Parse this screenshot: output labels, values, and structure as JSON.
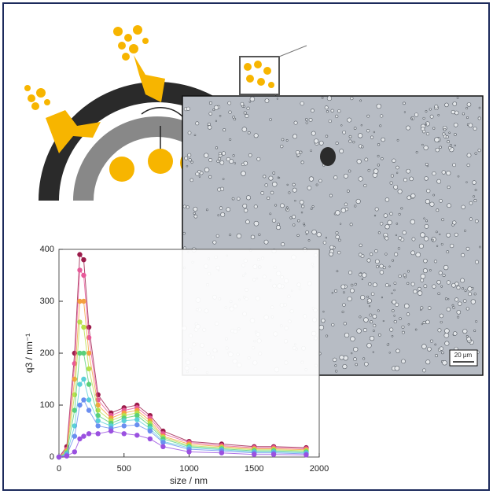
{
  "chart_data": {
    "type": "line",
    "x_label": "size / nm",
    "y_label": "q3 / nm⁻¹",
    "scale_bar": "20 µm",
    "x": [
      0,
      60,
      120,
      160,
      190,
      230,
      300,
      400,
      500,
      600,
      700,
      800,
      1000,
      1250,
      1500,
      1650,
      1900
    ],
    "series": [
      {
        "color": "#9b1b4a",
        "values": [
          0,
          20,
          200,
          390,
          380,
          250,
          120,
          85,
          95,
          100,
          80,
          50,
          30,
          25,
          20,
          20,
          18
        ]
      },
      {
        "color": "#e85a9a",
        "values": [
          0,
          15,
          180,
          360,
          350,
          230,
          110,
          80,
          90,
          95,
          75,
          45,
          28,
          22,
          18,
          18,
          16
        ]
      },
      {
        "color": "#f5a040",
        "values": [
          0,
          12,
          150,
          300,
          300,
          200,
          100,
          75,
          85,
          90,
          70,
          40,
          25,
          20,
          16,
          16,
          14
        ]
      },
      {
        "color": "#b8e04a",
        "values": [
          0,
          10,
          120,
          260,
          250,
          170,
          90,
          70,
          80,
          85,
          65,
          38,
          22,
          18,
          14,
          14,
          12
        ]
      },
      {
        "color": "#5ad07a",
        "values": [
          0,
          8,
          90,
          200,
          200,
          140,
          80,
          65,
          75,
          80,
          60,
          35,
          20,
          16,
          12,
          12,
          10
        ]
      },
      {
        "color": "#5ad0d8",
        "values": [
          0,
          6,
          60,
          140,
          150,
          110,
          70,
          60,
          70,
          72,
          55,
          30,
          18,
          14,
          10,
          10,
          8
        ]
      },
      {
        "color": "#6a8ef0",
        "values": [
          0,
          4,
          40,
          100,
          110,
          90,
          60,
          55,
          60,
          62,
          50,
          28,
          15,
          12,
          8,
          8,
          6
        ]
      },
      {
        "color": "#9a50e0",
        "values": [
          0,
          2,
          10,
          35,
          40,
          45,
          45,
          50,
          45,
          42,
          35,
          20,
          10,
          8,
          5,
          5,
          4
        ]
      }
    ],
    "xlim": [
      0,
      2000
    ],
    "xticks": [
      0,
      500,
      1000,
      1500,
      2000
    ],
    "ylim": [
      0,
      400
    ],
    "yticks": [
      0,
      100,
      200,
      300,
      400
    ]
  }
}
